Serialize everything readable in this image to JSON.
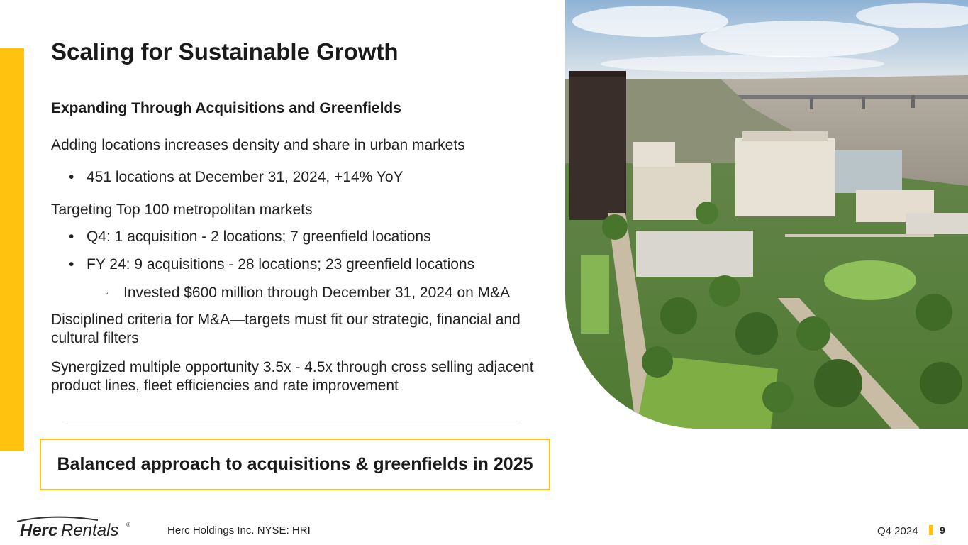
{
  "slide": {
    "title": "Scaling for Sustainable Growth",
    "subtitle": "Expanding Through Acquisitions and Greenfields",
    "paragraphs": [
      "Adding locations increases density and share in urban markets",
      "Targeting Top 100 metropolitan markets",
      "Disciplined criteria for M&A—targets must fit our strategic, financial and cultural filters",
      "Synergized multiple opportunity 3.5x - 4.5x through cross selling adjacent product lines, fleet efficiencies and rate improvement"
    ],
    "bullets": [
      "451 locations at December 31, 2024, +14% YoY",
      "Q4: 1 acquisition - 2 locations; 7 greenfield locations",
      "FY 24: 9 acquisitions - 28 locations; 23 greenfield locations"
    ],
    "sub_bullets": [
      "Invested $600 million through December 31, 2024 on M&A"
    ],
    "bullet_marker": "•",
    "sub_bullet_marker": "◦",
    "callout": "Balanced approach to acquisitions & greenfields in 2025"
  },
  "photo": {
    "subject": "aerial-city-view-with-river-and-bridge"
  },
  "footer": {
    "logo_text": "HercRentals",
    "logo_registered": "®",
    "company": "Herc Holdings Inc.  NYSE: HRI",
    "quarter": "Q4 2024",
    "page_number": "9"
  },
  "colors": {
    "accent": "#FFC20E",
    "text": "#222222",
    "divider": "#cfcfcf"
  }
}
